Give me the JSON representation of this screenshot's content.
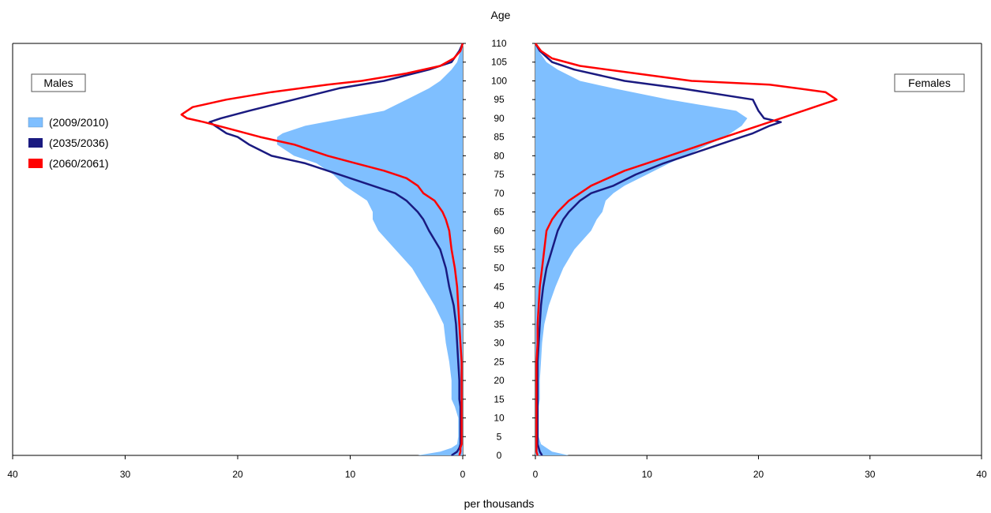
{
  "chart_data": {
    "type": "area",
    "title": "",
    "y_axis_label": "Age",
    "x_axis_label": "per thousands",
    "ylim": [
      0,
      110
    ],
    "xlim": [
      0,
      40
    ],
    "age_ticks": [
      "0",
      "5",
      "10",
      "15",
      "20",
      "25",
      "30",
      "35",
      "40",
      "45",
      "50",
      "55",
      "60",
      "65",
      "70",
      "75",
      "80",
      "85",
      "90",
      "95",
      "100",
      "105",
      "110"
    ],
    "x_ticks_left": [
      "40",
      "30",
      "20",
      "10",
      "0"
    ],
    "x_ticks_right": [
      "0",
      "10",
      "20",
      "30",
      "40"
    ],
    "panels": [
      {
        "name": "Males"
      },
      {
        "name": "Females"
      }
    ],
    "legend": {
      "position": "top-left"
    },
    "series": [
      {
        "name": "(2009/2010)",
        "style": "filled",
        "color": "#7fbfff",
        "ages": [
          0,
          1,
          2,
          3,
          5,
          8,
          10,
          13,
          15,
          18,
          20,
          25,
          30,
          35,
          40,
          45,
          50,
          55,
          60,
          63,
          65,
          68,
          70,
          72,
          75,
          78,
          80,
          83,
          85,
          86,
          88,
          90,
          92,
          95,
          98,
          100,
          103,
          105,
          108,
          110
        ],
        "males": [
          4,
          2,
          1,
          0.5,
          0.4,
          0.4,
          0.4,
          0.7,
          1,
          1,
          1,
          1.2,
          1.5,
          1.7,
          2.5,
          3.5,
          4.5,
          6,
          7.5,
          8,
          8,
          8.5,
          9.5,
          10.5,
          11.5,
          13,
          15,
          16.5,
          16.5,
          16,
          14,
          10.5,
          7,
          5,
          3,
          2,
          1,
          0.5,
          0.2,
          0
        ],
        "females": [
          3,
          1.5,
          1,
          0.5,
          0.3,
          0.3,
          0.3,
          0.3,
          0.4,
          0.4,
          0.4,
          0.5,
          0.6,
          0.8,
          1.2,
          1.8,
          2.5,
          3.5,
          5,
          5.5,
          6,
          6.3,
          7,
          8,
          10,
          12,
          13.5,
          15.5,
          17,
          17.5,
          18.5,
          19,
          18,
          12,
          7,
          4,
          2,
          1,
          0.3,
          0
        ]
      },
      {
        "name": "(2035/2036)",
        "style": "line",
        "color": "#1a1a80",
        "ages": [
          0,
          1,
          2,
          3,
          5,
          8,
          10,
          13,
          15,
          18,
          20,
          25,
          30,
          35,
          40,
          45,
          50,
          55,
          60,
          63,
          65,
          68,
          70,
          72,
          75,
          78,
          80,
          83,
          85,
          86,
          88,
          89,
          90,
          92,
          95,
          98,
          100,
          103,
          105,
          108,
          110
        ],
        "males": [
          1,
          0.5,
          0.3,
          0.2,
          0.2,
          0.2,
          0.2,
          0.2,
          0.3,
          0.3,
          0.3,
          0.4,
          0.5,
          0.6,
          0.8,
          1.2,
          1.5,
          2,
          3,
          3.5,
          4,
          5,
          6,
          8,
          11,
          14,
          17,
          19,
          20,
          21,
          22,
          22.5,
          21.5,
          19,
          15,
          11,
          7,
          3,
          1,
          0.3,
          0
        ],
        "females": [
          0.6,
          0.4,
          0.3,
          0.2,
          0.2,
          0.2,
          0.2,
          0.2,
          0.2,
          0.2,
          0.2,
          0.2,
          0.3,
          0.4,
          0.5,
          0.7,
          1,
          1.5,
          2,
          2.5,
          3,
          4,
          5,
          7,
          9,
          11.5,
          13.5,
          16.5,
          18.5,
          19.5,
          21,
          22,
          20.5,
          20,
          19.5,
          13,
          8,
          3.5,
          1.5,
          0.4,
          0
        ]
      },
      {
        "name": "(2060/2061)",
        "style": "line",
        "color": "#ff0000",
        "ages": [
          0,
          1,
          2,
          3,
          5,
          8,
          10,
          13,
          15,
          18,
          20,
          25,
          30,
          35,
          40,
          45,
          50,
          55,
          60,
          63,
          65,
          68,
          70,
          72,
          74,
          76,
          78,
          80,
          83,
          85,
          87,
          89,
          90,
          91,
          93,
          95,
          97,
          99,
          100,
          102,
          104,
          106,
          108,
          110
        ],
        "males": [
          0.3,
          0.2,
          0.2,
          0.1,
          0.1,
          0.1,
          0.1,
          0.1,
          0.1,
          0.1,
          0.1,
          0.1,
          0.2,
          0.3,
          0.4,
          0.5,
          0.7,
          1,
          1.2,
          1.5,
          1.8,
          2.5,
          3.5,
          4,
          5,
          7,
          9.5,
          12,
          15,
          18,
          20.5,
          23,
          24.5,
          25,
          24,
          21,
          17,
          12,
          9,
          5,
          2,
          0.8,
          0.2,
          0
        ],
        "females": [
          0.2,
          0.1,
          0.1,
          0.1,
          0.1,
          0.1,
          0.1,
          0.1,
          0.1,
          0.1,
          0.1,
          0.1,
          0.2,
          0.2,
          0.3,
          0.4,
          0.6,
          0.8,
          1,
          1.5,
          2,
          3,
          4,
          5,
          6.5,
          8,
          10,
          12,
          15,
          17,
          19,
          21,
          22,
          23,
          25,
          27,
          26,
          21,
          14,
          9,
          4,
          1.5,
          0.5,
          0
        ]
      }
    ]
  }
}
